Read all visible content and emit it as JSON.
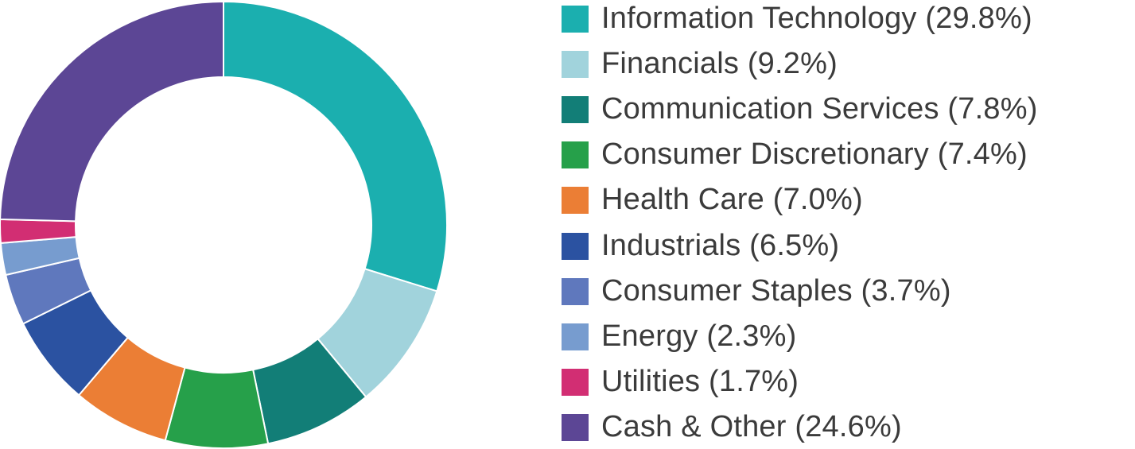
{
  "chart_data": {
    "type": "pie",
    "variant": "donut",
    "legend_position": "right",
    "categories": [
      "Information Technology",
      "Financials",
      "Communication Services",
      "Consumer Discretionary",
      "Health Care",
      "Industrials",
      "Consumer Staples",
      "Energy",
      "Utilities",
      "Cash & Other"
    ],
    "values": [
      29.8,
      9.2,
      7.8,
      7.4,
      7.0,
      6.5,
      3.7,
      2.3,
      1.7,
      24.6
    ],
    "labels": [
      "Information Technology (29.8%)",
      "Financials (9.2%)",
      "Communication Services (7.8%)",
      "Consumer Discretionary (7.4%)",
      "Health Care (7.0%)",
      "Industrials (6.5%)",
      "Consumer Staples (3.7%)",
      "Energy (2.3%)",
      "Utilities (1.7%)",
      "Cash & Other (24.6%)"
    ],
    "colors": [
      "#1BAFAF",
      "#A1D3DC",
      "#127E77",
      "#26A04A",
      "#EB7E35",
      "#2B52A1",
      "#5F78BD",
      "#779CCF",
      "#D22E73",
      "#5C4695"
    ]
  }
}
